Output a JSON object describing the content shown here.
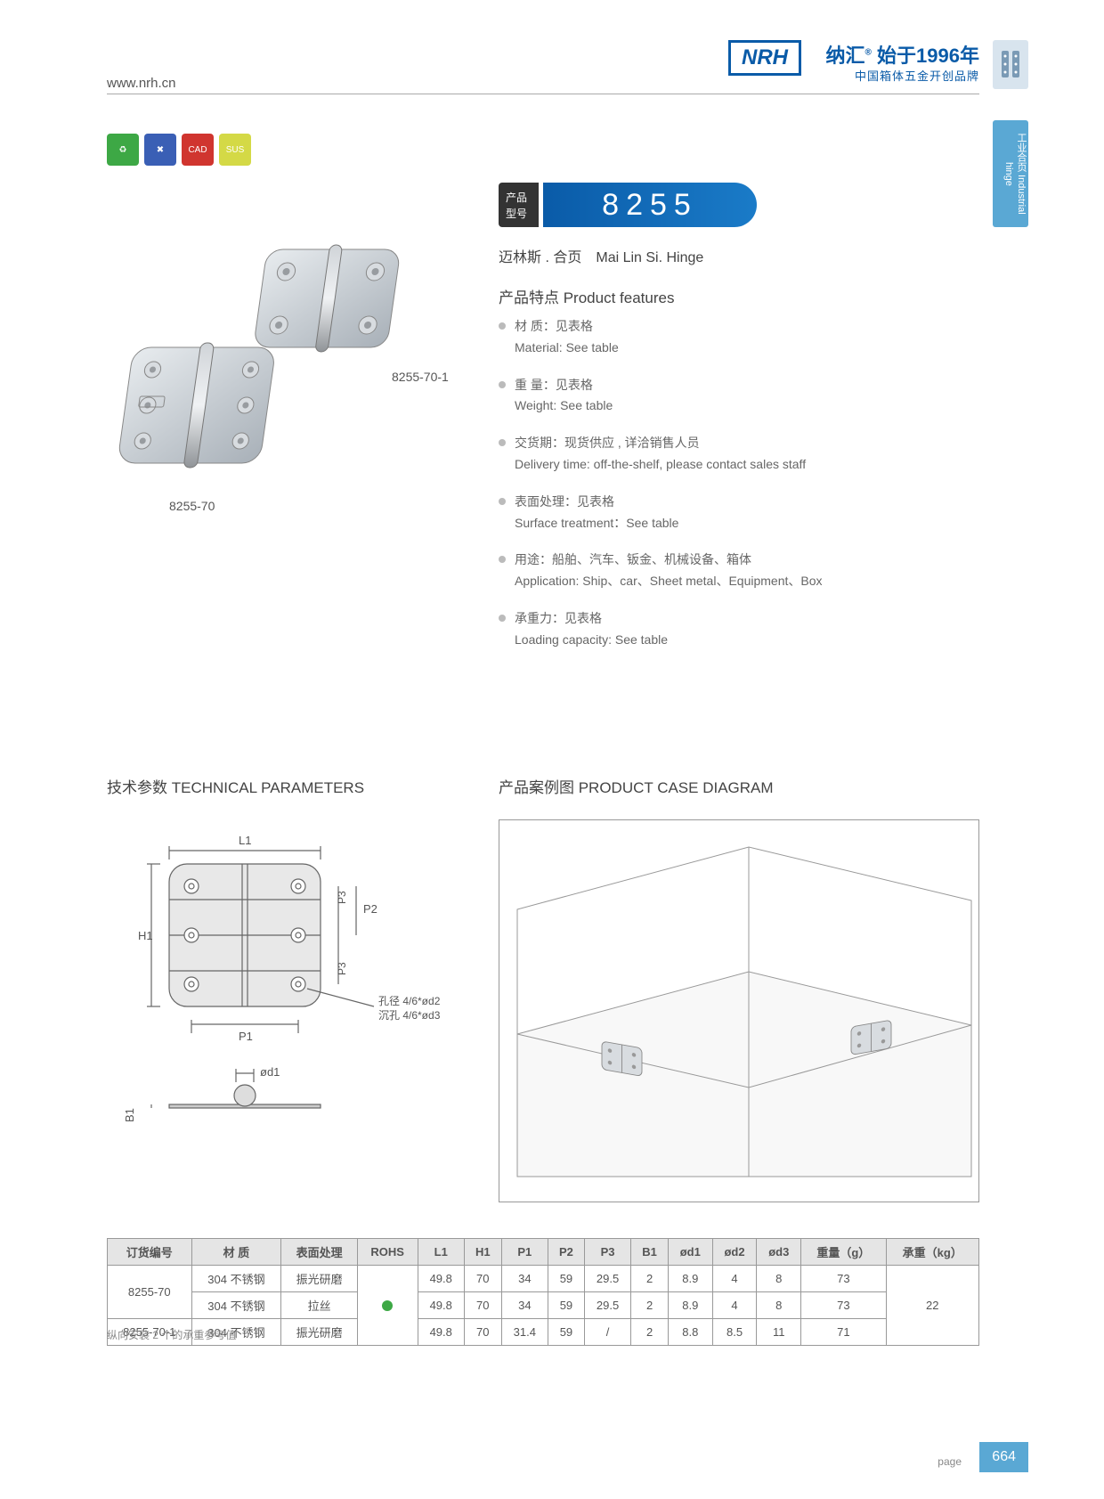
{
  "header": {
    "url": "www.nrh.cn",
    "logo": "NRH",
    "brand_cn": "纳汇",
    "founded": "始于1996年",
    "slogan": "中国箱体五金开创品牌",
    "side_tab": "工业合页\nIndustrial hinge"
  },
  "badges": {
    "b1": "♻",
    "b2": "✖",
    "b3": "CAD",
    "b4": "SUS"
  },
  "model": {
    "label": "产品\n型号",
    "number": "8255",
    "name_cn": "迈林斯 . 合页",
    "name_en": "Mai Lin Si. Hinge",
    "sample1": "8255-70",
    "sample2": "8255-70-1"
  },
  "features": {
    "title": "产品特点 Product features",
    "items": [
      {
        "cn": "材  质：见表格",
        "en": "Material: See table"
      },
      {
        "cn": "重  量：见表格",
        "en": "Weight: See table"
      },
      {
        "cn": "交货期：现货供应 , 详洽销售人员",
        "en": "Delivery time: off-the-shelf, please contact sales staff"
      },
      {
        "cn": "表面处理：见表格",
        "en": "Surface treatment：See table"
      },
      {
        "cn": "用途：船舶、汽车、钣金、机械设备、箱体",
        "en": "Application: Ship、car、Sheet metal、Equipment、Box"
      },
      {
        "cn": "承重力：见表格",
        "en": "Loading capacity: See table"
      }
    ]
  },
  "sections": {
    "tech": "技术参数  TECHNICAL PARAMETERS",
    "case": "产品案例图  PRODUCT CASE DIAGRAM"
  },
  "diagram": {
    "L1": "L1",
    "H1": "H1",
    "P1": "P1",
    "P2": "P2",
    "P3": "P3",
    "B1": "B1",
    "od1": "ød1",
    "note1": "孔径 4/6*ød2",
    "note2": "沉孔 4/6*ød3"
  },
  "table": {
    "headers": [
      "订货编号",
      "材  质",
      "表面处理",
      "ROHS",
      "L1",
      "H1",
      "P1",
      "P2",
      "P3",
      "B1",
      "ød1",
      "ød2",
      "ød3",
      "重量（g）",
      "承重（kg）"
    ],
    "rows": [
      {
        "code": "8255-70",
        "material": "304 不锈钢",
        "surface": "振光研磨",
        "L1": "49.8",
        "H1": "70",
        "P1": "34",
        "P2": "59",
        "P3": "29.5",
        "B1": "2",
        "od1": "8.9",
        "od2": "4",
        "od3": "8",
        "weight": "73",
        "load": "22"
      },
      {
        "code": "",
        "material": "304 不锈钢",
        "surface": "拉丝",
        "L1": "49.8",
        "H1": "70",
        "P1": "34",
        "P2": "59",
        "P3": "29.5",
        "B1": "2",
        "od1": "8.9",
        "od2": "4",
        "od3": "8",
        "weight": "73",
        "load": ""
      },
      {
        "code": "8255-70-1",
        "material": "304 不锈钢",
        "surface": "振光研磨",
        "L1": "49.8",
        "H1": "70",
        "P1": "31.4",
        "P2": "59",
        "P3": "/",
        "B1": "2",
        "od1": "8.8",
        "od2": "8.5",
        "od3": "11",
        "weight": "71",
        "load": ""
      }
    ],
    "rohs_color": "#3da845"
  },
  "footer": {
    "note": "纵向安装 2 个的承重参考值",
    "page_label": "page",
    "page_num": "664"
  }
}
